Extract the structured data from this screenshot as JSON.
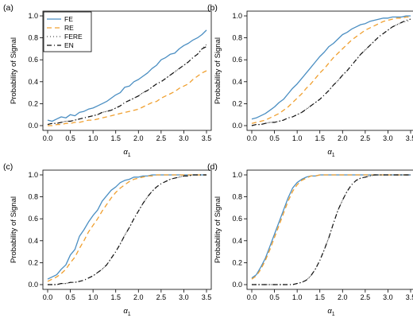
{
  "colors": {
    "FE": "#4a8ec2",
    "RE": "#f0a030",
    "FERE": "#555555",
    "EN": "#111111"
  },
  "chart_data": [
    {
      "type": "line",
      "panel_label": "(a)",
      "xlabel": "α",
      "xlabel_sub": "1",
      "ylabel": "Probability of Signal",
      "xlim": [
        0,
        3.5
      ],
      "ylim": [
        0,
        1
      ],
      "xticks": [
        "0.0",
        "0.5",
        "1.0",
        "1.5",
        "2.0",
        "2.5",
        "3.0",
        "3.5"
      ],
      "yticks": [
        "0.0",
        "0.2",
        "0.4",
        "0.6",
        "0.8",
        "1.0"
      ],
      "grid": false,
      "legend": {
        "position": "top-left",
        "entries": [
          "FE",
          "RE",
          "FERE",
          "EN"
        ]
      },
      "x": [
        0.0,
        0.1,
        0.2,
        0.3,
        0.4,
        0.5,
        0.6,
        0.7,
        0.8,
        0.9,
        1.0,
        1.1,
        1.2,
        1.3,
        1.4,
        1.5,
        1.6,
        1.7,
        1.8,
        1.9,
        2.0,
        2.1,
        2.2,
        2.3,
        2.4,
        2.5,
        2.6,
        2.7,
        2.8,
        2.9,
        3.0,
        3.1,
        3.2,
        3.3,
        3.4,
        3.5
      ],
      "series": [
        {
          "name": "FE",
          "values": [
            0.05,
            0.04,
            0.06,
            0.08,
            0.07,
            0.1,
            0.09,
            0.12,
            0.13,
            0.15,
            0.16,
            0.18,
            0.2,
            0.22,
            0.25,
            0.28,
            0.3,
            0.35,
            0.36,
            0.4,
            0.42,
            0.45,
            0.48,
            0.52,
            0.55,
            0.6,
            0.62,
            0.65,
            0.66,
            0.7,
            0.73,
            0.75,
            0.78,
            0.8,
            0.83,
            0.87
          ]
        },
        {
          "name": "RE",
          "values": [
            0.0,
            0.0,
            0.01,
            0.01,
            0.02,
            0.02,
            0.03,
            0.03,
            0.04,
            0.05,
            0.05,
            0.06,
            0.07,
            0.08,
            0.09,
            0.1,
            0.11,
            0.12,
            0.13,
            0.14,
            0.15,
            0.17,
            0.19,
            0.21,
            0.22,
            0.25,
            0.27,
            0.29,
            0.31,
            0.34,
            0.36,
            0.38,
            0.42,
            0.45,
            0.48,
            0.5
          ]
        },
        {
          "name": "FERE",
          "values": [
            0.01,
            0.02,
            0.02,
            0.03,
            0.04,
            0.04,
            0.05,
            0.06,
            0.07,
            0.08,
            0.09,
            0.1,
            0.12,
            0.13,
            0.14,
            0.16,
            0.18,
            0.21,
            0.23,
            0.25,
            0.27,
            0.3,
            0.32,
            0.35,
            0.38,
            0.4,
            0.43,
            0.46,
            0.49,
            0.52,
            0.55,
            0.58,
            0.62,
            0.65,
            0.7,
            0.74
          ]
        },
        {
          "name": "EN",
          "values": [
            0.01,
            0.02,
            0.02,
            0.03,
            0.04,
            0.04,
            0.05,
            0.06,
            0.07,
            0.08,
            0.09,
            0.1,
            0.12,
            0.13,
            0.14,
            0.16,
            0.18,
            0.21,
            0.23,
            0.25,
            0.27,
            0.3,
            0.32,
            0.35,
            0.38,
            0.4,
            0.43,
            0.46,
            0.49,
            0.52,
            0.55,
            0.58,
            0.62,
            0.65,
            0.7,
            0.72
          ]
        }
      ]
    },
    {
      "type": "line",
      "panel_label": "(b)",
      "xlabel": "α",
      "xlabel_sub": "1",
      "ylabel": "Probability of Signal",
      "xlim": [
        0,
        3.5
      ],
      "ylim": [
        0,
        1
      ],
      "xticks": [
        "0.0",
        "0.5",
        "1.0",
        "1.5",
        "2.0",
        "2.5",
        "3.0",
        "3.5"
      ],
      "yticks": [
        "0.0",
        "0.2",
        "0.4",
        "0.6",
        "0.8",
        "1.0"
      ],
      "grid": false,
      "x": [
        0.0,
        0.1,
        0.2,
        0.3,
        0.4,
        0.5,
        0.6,
        0.7,
        0.8,
        0.9,
        1.0,
        1.1,
        1.2,
        1.3,
        1.4,
        1.5,
        1.6,
        1.7,
        1.8,
        1.9,
        2.0,
        2.1,
        2.2,
        2.3,
        2.4,
        2.5,
        2.6,
        2.7,
        2.8,
        2.9,
        3.0,
        3.1,
        3.2,
        3.3,
        3.4,
        3.5
      ],
      "series": [
        {
          "name": "FE",
          "values": [
            0.06,
            0.07,
            0.09,
            0.11,
            0.14,
            0.17,
            0.21,
            0.24,
            0.29,
            0.34,
            0.38,
            0.43,
            0.48,
            0.53,
            0.58,
            0.63,
            0.67,
            0.72,
            0.75,
            0.79,
            0.83,
            0.85,
            0.88,
            0.9,
            0.92,
            0.93,
            0.95,
            0.96,
            0.97,
            0.98,
            0.98,
            0.99,
            0.99,
            0.99,
            1.0,
            1.0
          ]
        },
        {
          "name": "RE",
          "values": [
            0.02,
            0.03,
            0.04,
            0.05,
            0.07,
            0.09,
            0.11,
            0.14,
            0.17,
            0.21,
            0.25,
            0.29,
            0.34,
            0.38,
            0.43,
            0.48,
            0.52,
            0.57,
            0.62,
            0.66,
            0.7,
            0.74,
            0.78,
            0.81,
            0.84,
            0.87,
            0.89,
            0.91,
            0.93,
            0.95,
            0.96,
            0.97,
            0.98,
            0.98,
            0.99,
            0.99
          ]
        },
        {
          "name": "FERE",
          "values": [
            0.0,
            0.01,
            0.01,
            0.02,
            0.03,
            0.03,
            0.04,
            0.05,
            0.07,
            0.08,
            0.1,
            0.12,
            0.15,
            0.18,
            0.21,
            0.24,
            0.28,
            0.32,
            0.37,
            0.41,
            0.46,
            0.5,
            0.55,
            0.6,
            0.65,
            0.69,
            0.73,
            0.77,
            0.81,
            0.84,
            0.87,
            0.9,
            0.92,
            0.94,
            0.95,
            0.96
          ]
        },
        {
          "name": "EN",
          "values": [
            0.0,
            0.01,
            0.01,
            0.02,
            0.03,
            0.03,
            0.04,
            0.05,
            0.07,
            0.08,
            0.1,
            0.12,
            0.15,
            0.18,
            0.21,
            0.24,
            0.28,
            0.32,
            0.37,
            0.41,
            0.46,
            0.5,
            0.55,
            0.6,
            0.65,
            0.69,
            0.73,
            0.77,
            0.81,
            0.84,
            0.87,
            0.9,
            0.92,
            0.94,
            0.96,
            0.97
          ]
        }
      ]
    },
    {
      "type": "line",
      "panel_label": "(c)",
      "xlabel": "α",
      "xlabel_sub": "1",
      "ylabel": "Probability of Signal",
      "xlim": [
        0,
        3.5
      ],
      "ylim": [
        0,
        1
      ],
      "xticks": [
        "0.0",
        "0.5",
        "1.0",
        "1.5",
        "2.0",
        "2.5",
        "3.0",
        "3.5"
      ],
      "yticks": [
        "0.0",
        "0.2",
        "0.4",
        "0.6",
        "0.8",
        "1.0"
      ],
      "grid": false,
      "x": [
        0.0,
        0.1,
        0.2,
        0.3,
        0.4,
        0.5,
        0.6,
        0.7,
        0.8,
        0.9,
        1.0,
        1.1,
        1.2,
        1.3,
        1.4,
        1.5,
        1.6,
        1.7,
        1.8,
        1.9,
        2.0,
        2.1,
        2.2,
        2.3,
        2.4,
        2.5,
        2.6,
        2.7,
        2.8,
        2.9,
        3.0,
        3.1,
        3.2,
        3.3,
        3.4,
        3.5
      ],
      "series": [
        {
          "name": "FE",
          "values": [
            0.05,
            0.07,
            0.09,
            0.14,
            0.18,
            0.27,
            0.32,
            0.44,
            0.5,
            0.57,
            0.63,
            0.68,
            0.76,
            0.81,
            0.86,
            0.89,
            0.93,
            0.95,
            0.96,
            0.98,
            0.98,
            0.99,
            0.99,
            1.0,
            1.0,
            1.0,
            1.0,
            1.0,
            1.0,
            1.0,
            1.0,
            1.0,
            1.0,
            1.0,
            1.0,
            1.0
          ]
        },
        {
          "name": "RE",
          "values": [
            0.03,
            0.05,
            0.07,
            0.1,
            0.14,
            0.2,
            0.25,
            0.33,
            0.4,
            0.48,
            0.54,
            0.6,
            0.67,
            0.73,
            0.79,
            0.84,
            0.88,
            0.91,
            0.94,
            0.96,
            0.97,
            0.98,
            0.99,
            0.99,
            1.0,
            1.0,
            1.0,
            1.0,
            1.0,
            1.0,
            1.0,
            1.0,
            1.0,
            1.0,
            1.0,
            1.0
          ]
        },
        {
          "name": "FERE",
          "values": [
            0.0,
            0.0,
            0.0,
            0.01,
            0.01,
            0.02,
            0.02,
            0.03,
            0.04,
            0.06,
            0.08,
            0.11,
            0.14,
            0.18,
            0.24,
            0.3,
            0.37,
            0.45,
            0.52,
            0.6,
            0.67,
            0.74,
            0.8,
            0.85,
            0.89,
            0.92,
            0.94,
            0.96,
            0.97,
            0.98,
            0.99,
            0.99,
            1.0,
            1.0,
            1.0,
            1.0
          ]
        },
        {
          "name": "EN",
          "values": [
            0.0,
            0.0,
            0.0,
            0.01,
            0.01,
            0.02,
            0.02,
            0.03,
            0.04,
            0.06,
            0.08,
            0.11,
            0.14,
            0.18,
            0.24,
            0.3,
            0.37,
            0.45,
            0.52,
            0.6,
            0.67,
            0.74,
            0.8,
            0.85,
            0.89,
            0.92,
            0.94,
            0.96,
            0.97,
            0.98,
            0.99,
            0.99,
            1.0,
            1.0,
            1.0,
            1.0
          ]
        }
      ]
    },
    {
      "type": "line",
      "panel_label": "(d)",
      "xlabel": "α",
      "xlabel_sub": "1",
      "ylabel": "Probability of Signal",
      "xlim": [
        0,
        3.5
      ],
      "ylim": [
        0,
        1
      ],
      "xticks": [
        "0.0",
        "0.5",
        "1.0",
        "1.5",
        "2.0",
        "2.5",
        "3.0",
        "3.5"
      ],
      "yticks": [
        "0.0",
        "0.2",
        "0.4",
        "0.6",
        "0.8",
        "1.0"
      ],
      "grid": false,
      "x": [
        0.0,
        0.1,
        0.2,
        0.3,
        0.4,
        0.5,
        0.6,
        0.7,
        0.8,
        0.9,
        1.0,
        1.1,
        1.2,
        1.3,
        1.4,
        1.5,
        1.6,
        1.7,
        1.8,
        1.9,
        2.0,
        2.1,
        2.2,
        2.3,
        2.4,
        2.5,
        2.6,
        2.7,
        2.8,
        2.9,
        3.0,
        3.1,
        3.2,
        3.3,
        3.4,
        3.5
      ],
      "series": [
        {
          "name": "FE",
          "values": [
            0.06,
            0.09,
            0.16,
            0.24,
            0.35,
            0.46,
            0.57,
            0.68,
            0.79,
            0.88,
            0.93,
            0.96,
            0.98,
            0.99,
            0.99,
            1.0,
            1.0,
            1.0,
            1.0,
            1.0,
            1.0,
            1.0,
            1.0,
            1.0,
            1.0,
            1.0,
            1.0,
            1.0,
            1.0,
            1.0,
            1.0,
            1.0,
            1.0,
            1.0,
            1.0,
            1.0
          ]
        },
        {
          "name": "RE",
          "values": [
            0.05,
            0.08,
            0.14,
            0.22,
            0.32,
            0.43,
            0.54,
            0.65,
            0.76,
            0.85,
            0.91,
            0.95,
            0.97,
            0.99,
            0.99,
            1.0,
            1.0,
            1.0,
            1.0,
            1.0,
            1.0,
            1.0,
            1.0,
            1.0,
            1.0,
            1.0,
            1.0,
            1.0,
            1.0,
            1.0,
            1.0,
            1.0,
            1.0,
            1.0,
            1.0,
            1.0
          ]
        },
        {
          "name": "FERE",
          "values": [
            0.0,
            0.0,
            0.0,
            0.0,
            0.0,
            0.0,
            0.0,
            0.0,
            0.0,
            0.0,
            0.01,
            0.02,
            0.04,
            0.08,
            0.14,
            0.22,
            0.32,
            0.43,
            0.56,
            0.68,
            0.77,
            0.85,
            0.91,
            0.95,
            0.97,
            0.98,
            0.99,
            1.0,
            1.0,
            1.0,
            1.0,
            1.0,
            1.0,
            1.0,
            1.0,
            1.0
          ]
        },
        {
          "name": "EN",
          "values": [
            0.0,
            0.0,
            0.0,
            0.0,
            0.0,
            0.0,
            0.0,
            0.0,
            0.0,
            0.0,
            0.01,
            0.02,
            0.04,
            0.08,
            0.14,
            0.22,
            0.32,
            0.43,
            0.56,
            0.68,
            0.77,
            0.85,
            0.91,
            0.95,
            0.97,
            0.98,
            0.99,
            1.0,
            1.0,
            1.0,
            1.0,
            1.0,
            1.0,
            1.0,
            1.0,
            1.0
          ]
        }
      ]
    }
  ]
}
